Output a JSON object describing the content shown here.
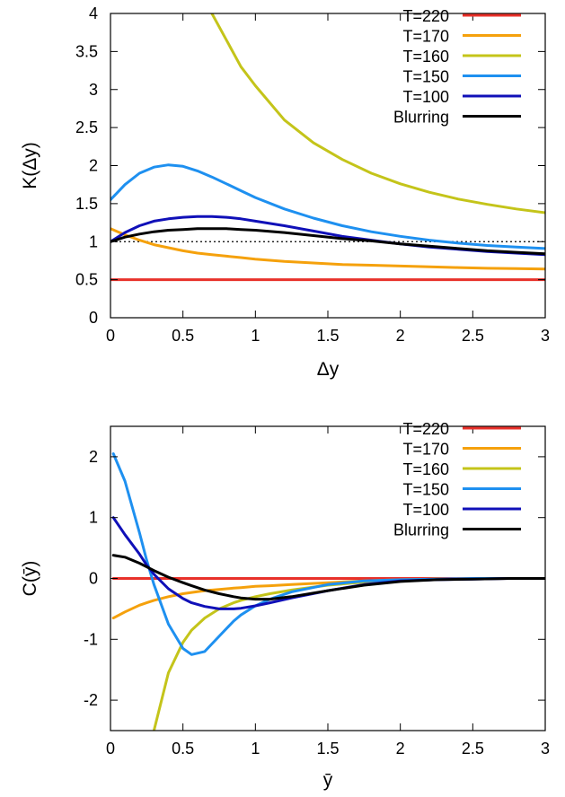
{
  "chart_data": [
    {
      "type": "line",
      "xlabel": "Δy",
      "ylabel": "K(Δy)",
      "xlim": [
        0,
        3
      ],
      "ylim": [
        0,
        4
      ],
      "x_ticks": [
        "0",
        "0.5",
        "1",
        "1.5",
        "2",
        "2.5",
        "3"
      ],
      "y_ticks": [
        "0",
        "0.5",
        "1",
        "1.5",
        "2",
        "2.5",
        "3",
        "3.5",
        "4"
      ],
      "grid": false,
      "legend_position": "top-right",
      "reference_line": {
        "y": 1,
        "style": "dotted"
      },
      "x": [
        0,
        0.1,
        0.2,
        0.3,
        0.4,
        0.5,
        0.6,
        0.7,
        0.8,
        0.9,
        1.0,
        1.2,
        1.4,
        1.6,
        1.8,
        2.0,
        2.2,
        2.4,
        2.6,
        2.8,
        3.0
      ],
      "series": [
        {
          "name": "T=220",
          "color": "#e8312a",
          "values": [
            0.5,
            0.5,
            0.5,
            0.5,
            0.5,
            0.5,
            0.5,
            0.5,
            0.5,
            0.5,
            0.5,
            0.5,
            0.5,
            0.5,
            0.5,
            0.5,
            0.5,
            0.5,
            0.5,
            0.5,
            0.5
          ]
        },
        {
          "name": "T=170",
          "color": "#f5a10c",
          "values": [
            1.17,
            1.09,
            1.02,
            0.96,
            0.92,
            0.88,
            0.85,
            0.83,
            0.81,
            0.79,
            0.77,
            0.74,
            0.72,
            0.7,
            0.69,
            0.68,
            0.67,
            0.66,
            0.65,
            0.645,
            0.64
          ]
        },
        {
          "name": "T=160",
          "color": "#c4c41a",
          "values": [
            null,
            null,
            null,
            null,
            null,
            null,
            null,
            4.0,
            3.65,
            3.3,
            3.05,
            2.6,
            2.3,
            2.08,
            1.9,
            1.76,
            1.65,
            1.56,
            1.49,
            1.43,
            1.38
          ]
        },
        {
          "name": "T=150",
          "color": "#1e90f0",
          "values": [
            1.55,
            1.75,
            1.9,
            1.98,
            2.01,
            1.99,
            1.93,
            1.85,
            1.76,
            1.67,
            1.58,
            1.43,
            1.31,
            1.21,
            1.13,
            1.07,
            1.02,
            0.98,
            0.95,
            0.93,
            0.91
          ]
        },
        {
          "name": "T=100",
          "color": "#1010b8",
          "values": [
            1.0,
            1.12,
            1.21,
            1.27,
            1.3,
            1.32,
            1.33,
            1.33,
            1.32,
            1.3,
            1.27,
            1.21,
            1.14,
            1.07,
            1.02,
            0.97,
            0.93,
            0.9,
            0.87,
            0.85,
            0.83
          ]
        },
        {
          "name": "Blurring",
          "color": "#000000",
          "values": [
            1.0,
            1.06,
            1.1,
            1.13,
            1.15,
            1.16,
            1.17,
            1.17,
            1.17,
            1.16,
            1.15,
            1.12,
            1.08,
            1.04,
            1.01,
            0.97,
            0.94,
            0.91,
            0.88,
            0.86,
            0.84
          ]
        }
      ]
    },
    {
      "type": "line",
      "xlabel": "ȳ",
      "ylabel": "C(ȳ)",
      "xlim": [
        0,
        3
      ],
      "ylim": [
        -2.5,
        2.5
      ],
      "x_ticks": [
        "0",
        "0.5",
        "1",
        "1.5",
        "2",
        "2.5",
        "3"
      ],
      "y_ticks": [
        "-2",
        "-1",
        "0",
        "1",
        "2"
      ],
      "grid": false,
      "legend_position": "top-right",
      "x": [
        0.02,
        0.1,
        0.2,
        0.25,
        0.3,
        0.4,
        0.5,
        0.56,
        0.65,
        0.75,
        0.85,
        0.9,
        1.0,
        1.1,
        1.25,
        1.5,
        1.75,
        2.0,
        2.25,
        2.5,
        2.75,
        3.0
      ],
      "series": [
        {
          "name": "T=220",
          "color": "#e8312a",
          "values": [
            0,
            0,
            0,
            0,
            0,
            0,
            0,
            0,
            0,
            0,
            0,
            0,
            0,
            0,
            0,
            0,
            0,
            0,
            0,
            0,
            0,
            0
          ]
        },
        {
          "name": "T=170",
          "color": "#f5a10c",
          "values": [
            -0.65,
            -0.55,
            -0.44,
            -0.4,
            -0.36,
            -0.3,
            -0.25,
            -0.23,
            -0.2,
            -0.18,
            -0.16,
            -0.15,
            -0.13,
            -0.12,
            -0.1,
            -0.07,
            -0.04,
            -0.02,
            -0.01,
            -0.005,
            0,
            0
          ]
        },
        {
          "name": "T=160",
          "color": "#c4c41a",
          "values": [
            null,
            null,
            null,
            null,
            -2.5,
            -1.55,
            -1.05,
            -0.85,
            -0.65,
            -0.5,
            -0.4,
            -0.36,
            -0.3,
            -0.25,
            -0.19,
            -0.11,
            -0.06,
            -0.03,
            -0.01,
            -0.005,
            0,
            0
          ]
        },
        {
          "name": "T=150",
          "color": "#1e90f0",
          "values": [
            2.05,
            1.6,
            0.75,
            0.3,
            -0.1,
            -0.75,
            -1.15,
            -1.25,
            -1.2,
            -0.95,
            -0.7,
            -0.6,
            -0.45,
            -0.34,
            -0.22,
            -0.1,
            -0.04,
            -0.02,
            -0.01,
            0,
            0,
            0
          ]
        },
        {
          "name": "T=100",
          "color": "#1010b8",
          "values": [
            1.0,
            0.72,
            0.4,
            0.22,
            0.07,
            -0.17,
            -0.33,
            -0.4,
            -0.46,
            -0.5,
            -0.5,
            -0.49,
            -0.45,
            -0.4,
            -0.32,
            -0.2,
            -0.1,
            -0.04,
            -0.02,
            -0.01,
            0,
            0
          ]
        },
        {
          "name": "Blurring",
          "color": "#000000",
          "values": [
            0.38,
            0.35,
            0.25,
            0.19,
            0.13,
            0.02,
            -0.07,
            -0.12,
            -0.19,
            -0.25,
            -0.3,
            -0.32,
            -0.34,
            -0.34,
            -0.3,
            -0.2,
            -0.11,
            -0.05,
            -0.02,
            -0.01,
            0,
            0
          ]
        }
      ]
    }
  ]
}
